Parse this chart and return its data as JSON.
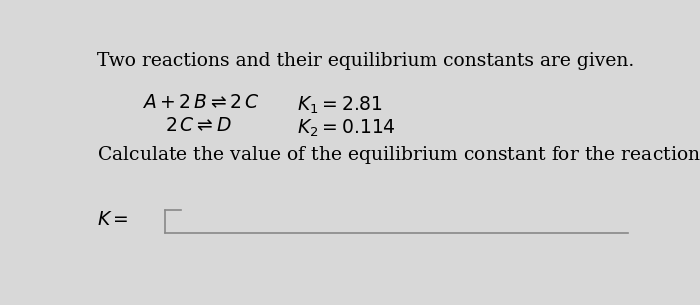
{
  "bg_color": "#d8d8d8",
  "panel_color": "#e8e8e4",
  "title_text": "Two reactions and their equilibrium constants are given.",
  "k1_label": "K",
  "k1_sub": "1",
  "k1_val": " = 2.81",
  "k2_label": "K",
  "k2_sub": "2",
  "k2_val": " = 0.114",
  "box_facecolor": "#e8e8e4",
  "box_edgecolor": "#888888",
  "title_fontsize": 13.5,
  "body_fontsize": 13.5
}
